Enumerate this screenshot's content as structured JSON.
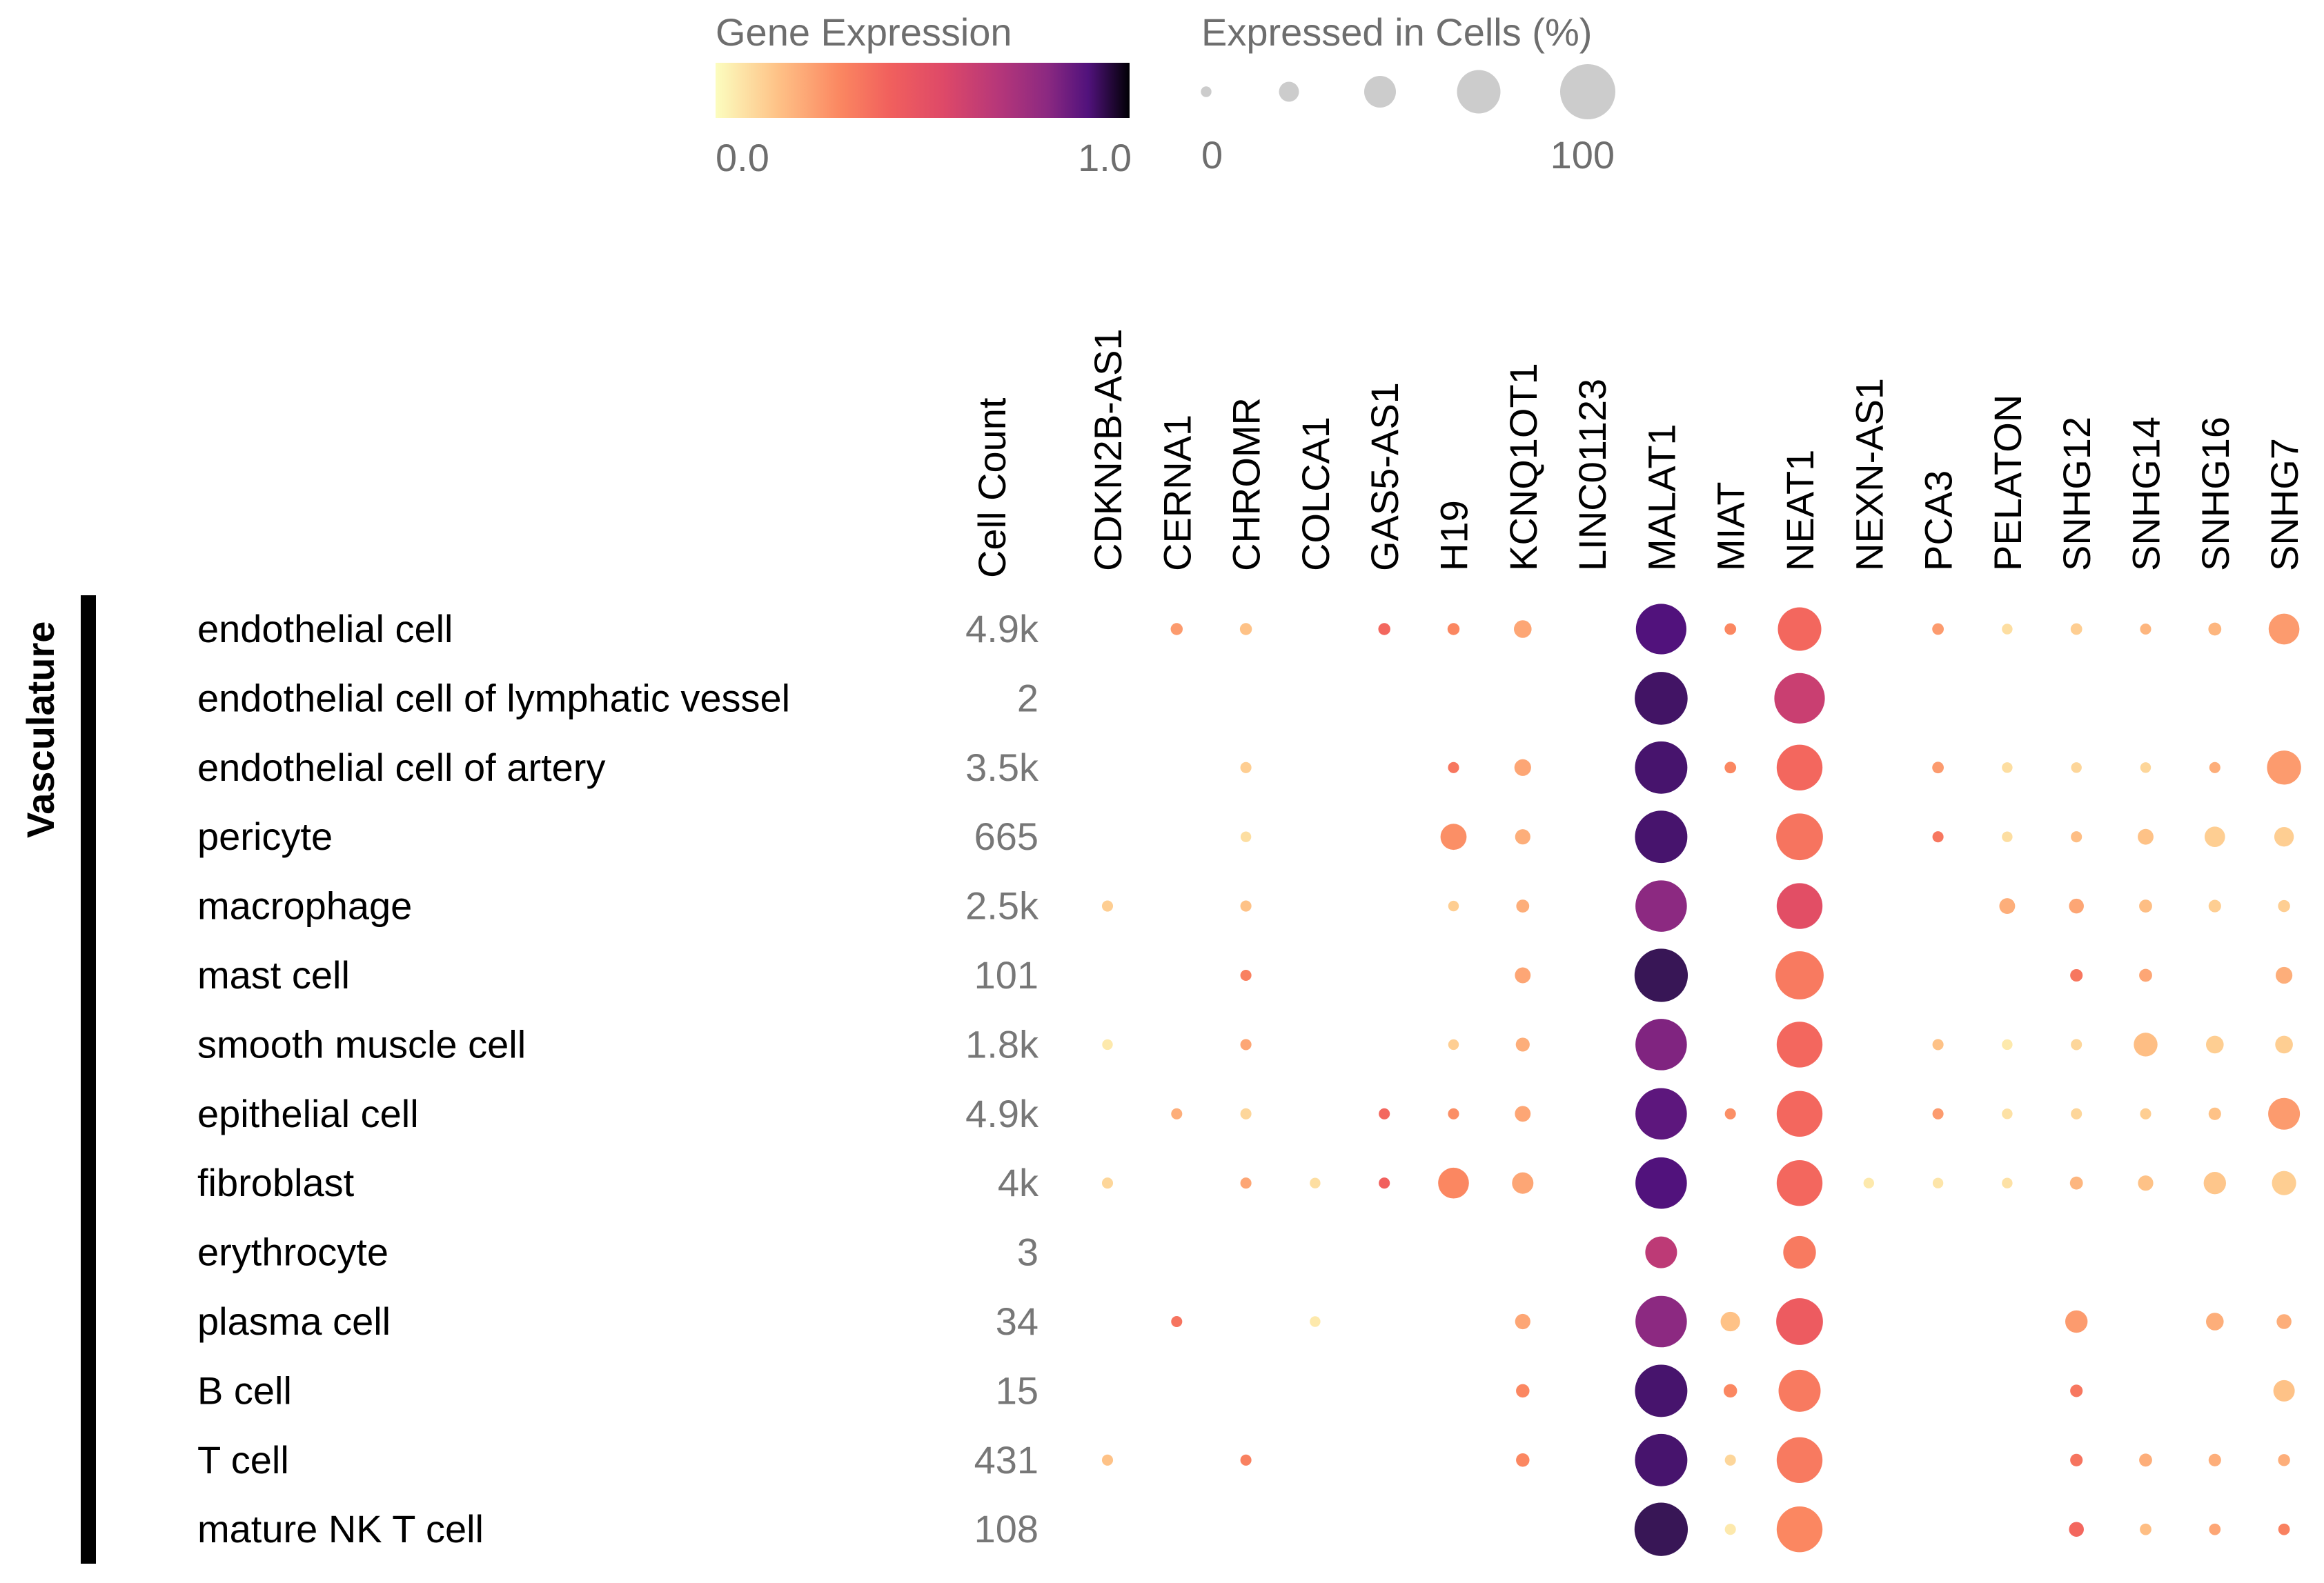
{
  "chart_data": {
    "type": "dotplot",
    "legend": {
      "color": {
        "title": "Gene Expression",
        "min_label": "0.0",
        "max_label": "1.0",
        "range": [
          0,
          1
        ]
      },
      "size": {
        "title": "Expressed in Cells (%)",
        "min_label": "0",
        "max_label": "100",
        "steps": [
          5,
          25,
          50,
          75,
          100
        ],
        "range": [
          0,
          100
        ]
      }
    },
    "group_label": "Vasculature",
    "count_header": "Cell Count",
    "genes": [
      "CDKN2B-AS1",
      "CERNA1",
      "CHROMR",
      "COLCA1",
      "GAS5-AS1",
      "H19",
      "KCNQ1OT1",
      "LINC01123",
      "MALAT1",
      "MIAT",
      "NEAT1",
      "NEXN-AS1",
      "PCA3",
      "PELATON",
      "SNHG12",
      "SNHG14",
      "SNHG16",
      "SNHG7"
    ],
    "cell_types": [
      {
        "name": "endothelial cell",
        "count": "4.9k",
        "dots": [
          [
            0,
            0
          ],
          [
            8,
            0.25
          ],
          [
            8,
            0.15
          ],
          [
            0,
            0
          ],
          [
            8,
            0.4
          ],
          [
            8,
            0.3
          ],
          [
            20,
            0.22
          ],
          [
            0,
            0
          ],
          [
            90,
            0.9
          ],
          [
            7,
            0.3
          ],
          [
            75,
            0.4
          ],
          [
            0,
            0
          ],
          [
            7,
            0.25
          ],
          [
            5,
            0.08
          ],
          [
            7,
            0.12
          ],
          [
            6,
            0.18
          ],
          [
            10,
            0.18
          ],
          [
            48,
            0.25
          ]
        ]
      },
      {
        "name": "endothelial cell of lymphatic vessel",
        "count": "2",
        "dots": [
          [
            0,
            0
          ],
          [
            0,
            0
          ],
          [
            0,
            0
          ],
          [
            0,
            0
          ],
          [
            0,
            0
          ],
          [
            0,
            0
          ],
          [
            0,
            0
          ],
          [
            0,
            0
          ],
          [
            95,
            0.93
          ],
          [
            0,
            0
          ],
          [
            90,
            0.62
          ],
          [
            0,
            0
          ],
          [
            0,
            0
          ],
          [
            0,
            0
          ],
          [
            0,
            0
          ],
          [
            0,
            0
          ],
          [
            0,
            0
          ],
          [
            0,
            0
          ]
        ]
      },
      {
        "name": "endothelial cell of artery",
        "count": "3.5k",
        "dots": [
          [
            0,
            0
          ],
          [
            0,
            0
          ],
          [
            6,
            0.12
          ],
          [
            0,
            0
          ],
          [
            0,
            0
          ],
          [
            6,
            0.35
          ],
          [
            18,
            0.22
          ],
          [
            0,
            0
          ],
          [
            94,
            0.92
          ],
          [
            7,
            0.3
          ],
          [
            80,
            0.4
          ],
          [
            0,
            0
          ],
          [
            7,
            0.25
          ],
          [
            5,
            0.08
          ],
          [
            5,
            0.1
          ],
          [
            5,
            0.1
          ],
          [
            6,
            0.2
          ],
          [
            55,
            0.25
          ]
        ]
      },
      {
        "name": "pericyte",
        "count": "665",
        "dots": [
          [
            0,
            0
          ],
          [
            0,
            0
          ],
          [
            5,
            0.08
          ],
          [
            0,
            0
          ],
          [
            0,
            0
          ],
          [
            38,
            0.28
          ],
          [
            15,
            0.2
          ],
          [
            0,
            0
          ],
          [
            94,
            0.92
          ],
          [
            0,
            0
          ],
          [
            82,
            0.36
          ],
          [
            0,
            0
          ],
          [
            6,
            0.35
          ],
          [
            5,
            0.08
          ],
          [
            6,
            0.16
          ],
          [
            16,
            0.15
          ],
          [
            26,
            0.12
          ],
          [
            24,
            0.12
          ]
        ]
      },
      {
        "name": "macrophage",
        "count": "2.5k",
        "dots": [
          [
            6,
            0.12
          ],
          [
            0,
            0
          ],
          [
            6,
            0.15
          ],
          [
            0,
            0
          ],
          [
            0,
            0
          ],
          [
            5,
            0.12
          ],
          [
            10,
            0.2
          ],
          [
            0,
            0
          ],
          [
            92,
            0.8
          ],
          [
            0,
            0
          ],
          [
            80,
            0.52
          ],
          [
            0,
            0
          ],
          [
            0,
            0
          ],
          [
            16,
            0.2
          ],
          [
            14,
            0.22
          ],
          [
            10,
            0.16
          ],
          [
            9,
            0.12
          ],
          [
            8,
            0.12
          ]
        ]
      },
      {
        "name": "mast cell",
        "count": "101",
        "dots": [
          [
            0,
            0
          ],
          [
            0,
            0
          ],
          [
            6,
            0.32
          ],
          [
            0,
            0
          ],
          [
            0,
            0
          ],
          [
            0,
            0
          ],
          [
            16,
            0.22
          ],
          [
            0,
            0
          ],
          [
            96,
            0.95
          ],
          [
            0,
            0
          ],
          [
            85,
            0.34
          ],
          [
            0,
            0
          ],
          [
            0,
            0
          ],
          [
            0,
            0
          ],
          [
            9,
            0.35
          ],
          [
            10,
            0.22
          ],
          [
            0,
            0
          ],
          [
            18,
            0.2
          ]
        ]
      },
      {
        "name": "smooth muscle cell",
        "count": "1.8k",
        "dots": [
          [
            5,
            0.05
          ],
          [
            0,
            0
          ],
          [
            6,
            0.22
          ],
          [
            0,
            0
          ],
          [
            0,
            0
          ],
          [
            5,
            0.12
          ],
          [
            12,
            0.2
          ],
          [
            0,
            0
          ],
          [
            92,
            0.82
          ],
          [
            0,
            0
          ],
          [
            80,
            0.4
          ],
          [
            0,
            0
          ],
          [
            6,
            0.15
          ],
          [
            5,
            0.05
          ],
          [
            6,
            0.1
          ],
          [
            33,
            0.16
          ],
          [
            20,
            0.12
          ],
          [
            20,
            0.12
          ]
        ]
      },
      {
        "name": "epithelial cell",
        "count": "4.9k",
        "dots": [
          [
            0,
            0
          ],
          [
            6,
            0.2
          ],
          [
            6,
            0.1
          ],
          [
            0,
            0
          ],
          [
            6,
            0.4
          ],
          [
            6,
            0.28
          ],
          [
            16,
            0.22
          ],
          [
            0,
            0
          ],
          [
            92,
            0.88
          ],
          [
            6,
            0.28
          ],
          [
            80,
            0.4
          ],
          [
            0,
            0
          ],
          [
            6,
            0.25
          ],
          [
            5,
            0.07
          ],
          [
            6,
            0.1
          ],
          [
            6,
            0.12
          ],
          [
            9,
            0.15
          ],
          [
            50,
            0.25
          ]
        ]
      },
      {
        "name": "fibroblast",
        "count": "4k",
        "dots": [
          [
            6,
            0.1
          ],
          [
            0,
            0
          ],
          [
            6,
            0.22
          ],
          [
            5,
            0.08
          ],
          [
            6,
            0.42
          ],
          [
            48,
            0.3
          ],
          [
            28,
            0.22
          ],
          [
            0,
            0
          ],
          [
            92,
            0.9
          ],
          [
            0,
            0
          ],
          [
            80,
            0.4
          ],
          [
            5,
            0.05
          ],
          [
            5,
            0.06
          ],
          [
            5,
            0.07
          ],
          [
            10,
            0.18
          ],
          [
            15,
            0.15
          ],
          [
            30,
            0.14
          ],
          [
            34,
            0.12
          ]
        ]
      },
      {
        "name": "erythrocyte",
        "count": "3",
        "dots": [
          [
            0,
            0
          ],
          [
            0,
            0
          ],
          [
            0,
            0
          ],
          [
            0,
            0
          ],
          [
            0,
            0
          ],
          [
            0,
            0
          ],
          [
            0,
            0
          ],
          [
            0,
            0
          ],
          [
            50,
            0.66
          ],
          [
            0,
            0
          ],
          [
            52,
            0.34
          ],
          [
            0,
            0
          ],
          [
            0,
            0
          ],
          [
            0,
            0
          ],
          [
            0,
            0
          ],
          [
            0,
            0
          ],
          [
            0,
            0
          ],
          [
            0,
            0
          ]
        ]
      },
      {
        "name": "plasma cell",
        "count": "34",
        "dots": [
          [
            0,
            0
          ],
          [
            6,
            0.36
          ],
          [
            0,
            0
          ],
          [
            5,
            0.05
          ],
          [
            0,
            0
          ],
          [
            0,
            0
          ],
          [
            15,
            0.22
          ],
          [
            0,
            0
          ],
          [
            92,
            0.8
          ],
          [
            24,
            0.15
          ],
          [
            82,
            0.45
          ],
          [
            0,
            0
          ],
          [
            0,
            0
          ],
          [
            0,
            0
          ],
          [
            30,
            0.25
          ],
          [
            0,
            0
          ],
          [
            20,
            0.2
          ],
          [
            14,
            0.2
          ]
        ]
      },
      {
        "name": "B cell",
        "count": "15",
        "dots": [
          [
            0,
            0
          ],
          [
            0,
            0
          ],
          [
            0,
            0
          ],
          [
            0,
            0
          ],
          [
            0,
            0
          ],
          [
            0,
            0
          ],
          [
            11,
            0.3
          ],
          [
            0,
            0
          ],
          [
            94,
            0.92
          ],
          [
            11,
            0.3
          ],
          [
            72,
            0.34
          ],
          [
            0,
            0
          ],
          [
            0,
            0
          ],
          [
            0,
            0
          ],
          [
            9,
            0.35
          ],
          [
            0,
            0
          ],
          [
            0,
            0
          ],
          [
            28,
            0.15
          ]
        ]
      },
      {
        "name": "T cell",
        "count": "431",
        "dots": [
          [
            6,
            0.15
          ],
          [
            0,
            0
          ],
          [
            6,
            0.32
          ],
          [
            0,
            0
          ],
          [
            0,
            0
          ],
          [
            0,
            0
          ],
          [
            11,
            0.3
          ],
          [
            0,
            0
          ],
          [
            94,
            0.92
          ],
          [
            6,
            0.1
          ],
          [
            80,
            0.34
          ],
          [
            0,
            0
          ],
          [
            0,
            0
          ],
          [
            0,
            0
          ],
          [
            9,
            0.36
          ],
          [
            10,
            0.2
          ],
          [
            9,
            0.2
          ],
          [
            8,
            0.2
          ]
        ]
      },
      {
        "name": "mature NK T cell",
        "count": "108",
        "dots": [
          [
            0,
            0
          ],
          [
            0,
            0
          ],
          [
            0,
            0
          ],
          [
            0,
            0
          ],
          [
            0,
            0
          ],
          [
            0,
            0
          ],
          [
            0,
            0
          ],
          [
            0,
            0
          ],
          [
            96,
            0.95
          ],
          [
            6,
            0.05
          ],
          [
            80,
            0.3
          ],
          [
            0,
            0
          ],
          [
            0,
            0
          ],
          [
            0,
            0
          ],
          [
            14,
            0.4
          ],
          [
            7,
            0.16
          ],
          [
            7,
            0.22
          ],
          [
            7,
            0.32
          ]
        ]
      }
    ]
  }
}
